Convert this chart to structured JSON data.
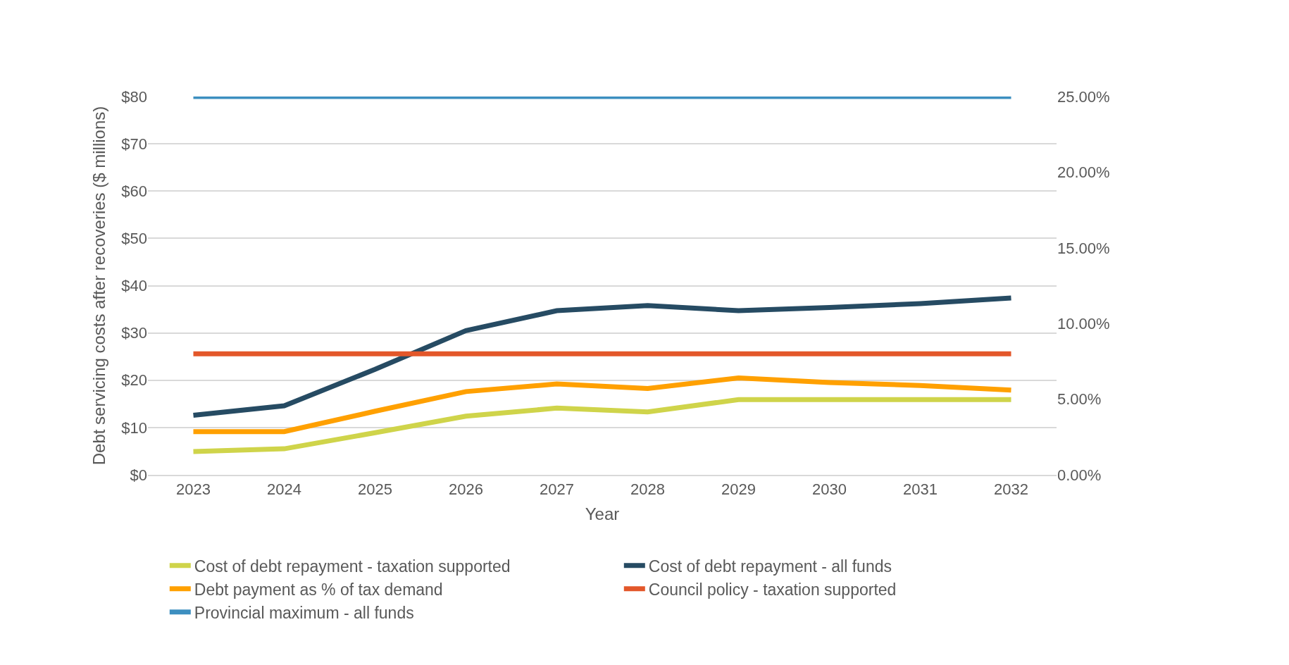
{
  "chart_data": {
    "type": "line",
    "xlabel": "Year",
    "ylabel": "Debt servicing costs after recoveries ($ millions)",
    "categories": [
      "2023",
      "2024",
      "2025",
      "2026",
      "2027",
      "2028",
      "2029",
      "2030",
      "2031",
      "2032"
    ],
    "series": [
      {
        "name": "Cost of debt repayment - taxation supported",
        "color": "#cfd44a",
        "values": [
          4.9,
          5.5,
          8.9,
          12.4,
          14.1,
          13.3,
          15.9,
          15.9,
          15.9,
          15.9
        ]
      },
      {
        "name": "Cost of debt repayment - all funds",
        "color": "#264b63",
        "values": [
          12.6,
          14.6,
          22.3,
          30.5,
          34.7,
          35.8,
          34.7,
          35.4,
          36.2,
          37.4
        ]
      },
      {
        "name": "Debt payment as % of tax demand",
        "color": "#ffa000",
        "axis": "y2",
        "values": [
          2.85,
          2.85,
          4.2,
          5.5,
          6.0,
          5.7,
          6.4,
          6.1,
          5.9,
          5.6
        ]
      },
      {
        "name": "Council policy - taxation supported",
        "color": "#e3572a",
        "axis": "y2",
        "values": [
          8,
          8,
          8,
          8,
          8,
          8,
          8,
          8,
          8,
          8
        ]
      },
      {
        "name": "Provincial maximum - all funds",
        "color": "#3d8fc0",
        "axis": "y2",
        "values": [
          25,
          25,
          25,
          25,
          25,
          25,
          25,
          25,
          25,
          25
        ]
      }
    ],
    "ylim": [
      0,
      80
    ],
    "yticks": [
      {
        "value": 0,
        "label": "$0"
      },
      {
        "value": 10,
        "label": "$10"
      },
      {
        "value": 20,
        "label": "$20"
      },
      {
        "value": 30,
        "label": "$30"
      },
      {
        "value": 40,
        "label": "$40"
      },
      {
        "value": 50,
        "label": "$50"
      },
      {
        "value": 60,
        "label": "$60"
      },
      {
        "value": 70,
        "label": "$70"
      },
      {
        "value": 80,
        "label": "$80"
      }
    ],
    "y2lim": [
      0,
      25
    ],
    "y2ticks": [
      {
        "value": 0,
        "label": "0.00%"
      },
      {
        "value": 5,
        "label": "5.00%"
      },
      {
        "value": 10,
        "label": "10.00%"
      },
      {
        "value": 15,
        "label": "15.00%"
      },
      {
        "value": 20,
        "label": "20.00%"
      },
      {
        "value": 25,
        "label": "25.00%"
      }
    ],
    "grid": "y",
    "legend": "bottom",
    "marker": "none",
    "line_style": "solid"
  }
}
